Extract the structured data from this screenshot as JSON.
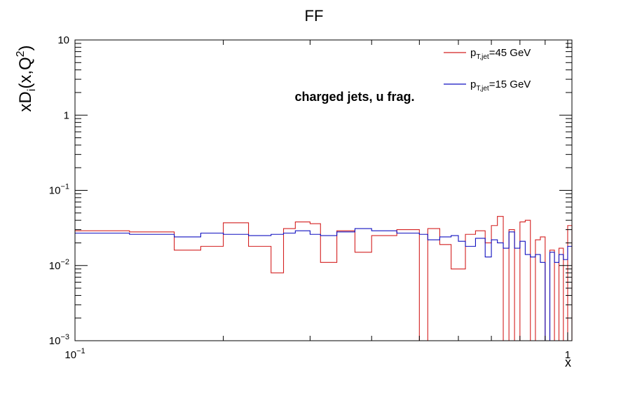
{
  "chart_data": {
    "type": "line",
    "title": "FF",
    "annotation": "charged jets, u frag.",
    "xlabel": "x",
    "ylabel": "xD_i(x,Q^2)",
    "x_scale": "log",
    "y_scale": "log",
    "xlim": [
      0.1,
      1.02
    ],
    "ylim": [
      0.001,
      10
    ],
    "grid": false,
    "legend_position": "top-right",
    "x_ticks": [
      {
        "value": 0.1,
        "base": "10",
        "exp": "−1"
      },
      {
        "value": 1,
        "base": "1",
        "exp": ""
      }
    ],
    "y_ticks": [
      {
        "value": 0.001,
        "base": "10",
        "exp": "−3"
      },
      {
        "value": 0.01,
        "base": "10",
        "exp": "−2"
      },
      {
        "value": 0.1,
        "base": "10",
        "exp": "−1"
      },
      {
        "value": 1,
        "base": "1",
        "exp": ""
      },
      {
        "value": 10,
        "base": "10",
        "exp": ""
      }
    ],
    "series": [
      {
        "name": "p_T,jet=45 GeV",
        "legend_main": "p",
        "legend_sub": "T,jet",
        "legend_rest": "=45 GeV",
        "color": "#d42020",
        "edges": [
          0.1,
          0.129,
          0.159,
          0.18,
          0.2,
          0.225,
          0.25,
          0.265,
          0.28,
          0.3,
          0.315,
          0.34,
          0.37,
          0.4,
          0.45,
          0.5,
          0.52,
          0.55,
          0.58,
          0.6,
          0.62,
          0.65,
          0.68,
          0.7,
          0.72,
          0.74,
          0.76,
          0.78,
          0.8,
          0.82,
          0.84,
          0.86,
          0.88,
          0.9,
          0.92,
          0.94,
          0.96,
          0.98,
          1.0,
          1.02
        ],
        "values": [
          0.029,
          0.028,
          0.016,
          0.018,
          0.037,
          0.018,
          0.008,
          0.031,
          0.038,
          0.036,
          0.011,
          0.029,
          0.015,
          0.025,
          0.03,
          0.0008,
          0.031,
          0.019,
          0.009,
          0.009,
          0.026,
          0.029,
          0.02,
          0.034,
          0.045,
          0.0008,
          0.03,
          0.0008,
          0.038,
          0.04,
          0.0008,
          0.022,
          0.024,
          0.0008,
          0.016,
          0.0008,
          0.017,
          0.0008,
          0.034,
          0.0008
        ]
      },
      {
        "name": "p_T,jet=15 GeV",
        "legend_main": "p",
        "legend_sub": "T,jet",
        "legend_rest": "=15 GeV",
        "color": "#1010c0",
        "edges": [
          0.1,
          0.129,
          0.159,
          0.18,
          0.2,
          0.225,
          0.25,
          0.265,
          0.28,
          0.3,
          0.315,
          0.34,
          0.37,
          0.4,
          0.45,
          0.5,
          0.52,
          0.55,
          0.58,
          0.6,
          0.62,
          0.65,
          0.68,
          0.7,
          0.72,
          0.74,
          0.76,
          0.78,
          0.8,
          0.82,
          0.84,
          0.86,
          0.88,
          0.9,
          0.92,
          0.94,
          0.96,
          0.98,
          1.0,
          1.02
        ],
        "values": [
          0.027,
          0.026,
          0.024,
          0.027,
          0.026,
          0.025,
          0.026,
          0.027,
          0.029,
          0.026,
          0.025,
          0.028,
          0.031,
          0.029,
          0.027,
          0.026,
          0.022,
          0.024,
          0.025,
          0.021,
          0.018,
          0.023,
          0.013,
          0.022,
          0.02,
          0.017,
          0.028,
          0.017,
          0.021,
          0.014,
          0.013,
          0.014,
          0.011,
          0.0009,
          0.015,
          0.011,
          0.014,
          0.012,
          0.018,
          0.018
        ]
      }
    ]
  }
}
